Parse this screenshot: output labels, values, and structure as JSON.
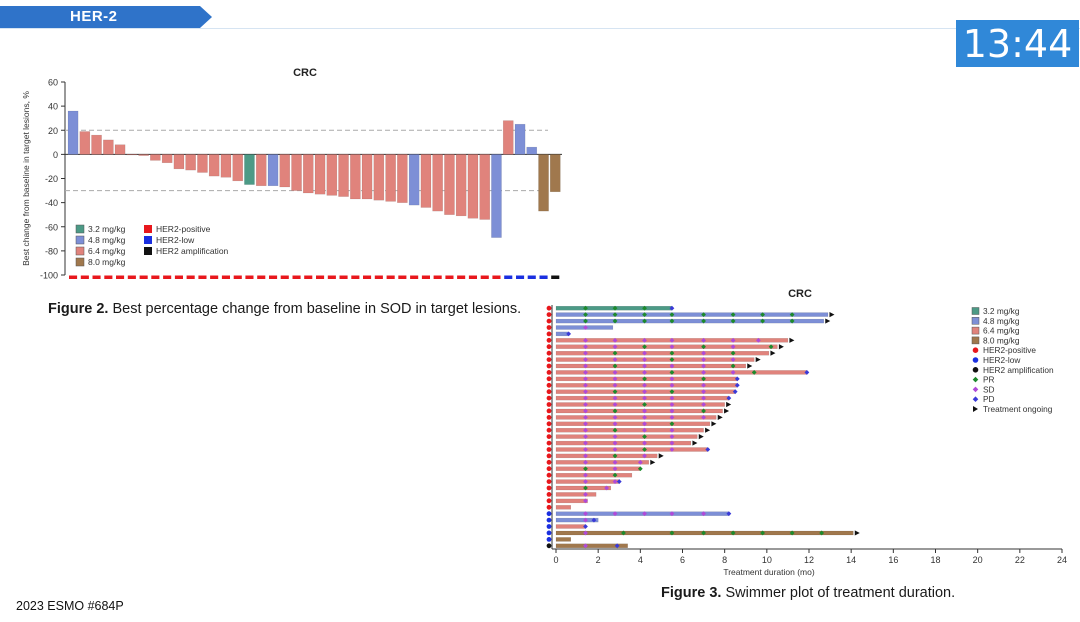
{
  "header": {
    "section_tag": "HER-2",
    "timer": "13:44"
  },
  "footer": {
    "citation": "2023 ESMO #684P"
  },
  "colors": {
    "dose_3_2": "#4c9a86",
    "dose_4_8": "#7d8fd6",
    "dose_6_4": "#e0837c",
    "dose_8_0": "#a0784d",
    "her2_positive": "#e8171c",
    "her2_low": "#1a2fe0",
    "her2_amp": "#111111",
    "pr": "#1d8a2c",
    "sd": "#b04ad8",
    "pd": "#3a3ad8",
    "banner": "#2f73c9",
    "timer_bg": "#3088d8"
  },
  "figure2": {
    "caption_bold": "Figure 2.",
    "caption_text": " Best percentage change from baseline in SOD in target lesions."
  },
  "figure3": {
    "caption_bold": "Figure 3.",
    "caption_text": " Swimmer plot of treatment duration."
  },
  "chart_data": [
    {
      "type": "bar",
      "subtype": "waterfall",
      "title": "CRC",
      "ylabel": "Best change from baseline in target lesions, %",
      "xlabel": "",
      "ylim": [
        -100,
        60
      ],
      "yticks": [
        60,
        40,
        20,
        0,
        -20,
        -40,
        -60,
        -80,
        -100
      ],
      "reference_lines": [
        20,
        -30
      ],
      "legend_dose": [
        {
          "label": "3.2 mg/kg",
          "key": "dose_3_2"
        },
        {
          "label": "4.8 mg/kg",
          "key": "dose_4_8"
        },
        {
          "label": "6.4 mg/kg",
          "key": "dose_6_4"
        },
        {
          "label": "8.0 mg/kg",
          "key": "dose_8_0"
        }
      ],
      "legend_her2": [
        {
          "label": "HER2-positive",
          "key": "her2_positive"
        },
        {
          "label": "HER2-low",
          "key": "her2_low"
        },
        {
          "label": "HER2 amplification",
          "key": "her2_amp"
        }
      ],
      "bars": [
        {
          "value": 36,
          "dose": "dose_4_8",
          "her2": "her2_positive"
        },
        {
          "value": 19,
          "dose": "dose_6_4",
          "her2": "her2_positive"
        },
        {
          "value": 16,
          "dose": "dose_6_4",
          "her2": "her2_positive"
        },
        {
          "value": 12,
          "dose": "dose_6_4",
          "her2": "her2_positive"
        },
        {
          "value": 8,
          "dose": "dose_6_4",
          "her2": "her2_positive"
        },
        {
          "value": 0,
          "dose": "dose_6_4",
          "her2": "her2_positive"
        },
        {
          "value": -1,
          "dose": "dose_6_4",
          "her2": "her2_positive"
        },
        {
          "value": -5,
          "dose": "dose_6_4",
          "her2": "her2_positive"
        },
        {
          "value": -7,
          "dose": "dose_6_4",
          "her2": "her2_positive"
        },
        {
          "value": -12,
          "dose": "dose_6_4",
          "her2": "her2_positive"
        },
        {
          "value": -13,
          "dose": "dose_6_4",
          "her2": "her2_positive"
        },
        {
          "value": -15,
          "dose": "dose_6_4",
          "her2": "her2_positive"
        },
        {
          "value": -18,
          "dose": "dose_6_4",
          "her2": "her2_positive"
        },
        {
          "value": -19,
          "dose": "dose_6_4",
          "her2": "her2_positive"
        },
        {
          "value": -22,
          "dose": "dose_6_4",
          "her2": "her2_positive"
        },
        {
          "value": -25,
          "dose": "dose_3_2",
          "her2": "her2_positive"
        },
        {
          "value": -26,
          "dose": "dose_6_4",
          "her2": "her2_positive"
        },
        {
          "value": -26,
          "dose": "dose_4_8",
          "her2": "her2_positive"
        },
        {
          "value": -27,
          "dose": "dose_6_4",
          "her2": "her2_positive"
        },
        {
          "value": -30,
          "dose": "dose_6_4",
          "her2": "her2_positive"
        },
        {
          "value": -32,
          "dose": "dose_6_4",
          "her2": "her2_positive"
        },
        {
          "value": -33,
          "dose": "dose_6_4",
          "her2": "her2_positive"
        },
        {
          "value": -34,
          "dose": "dose_6_4",
          "her2": "her2_positive"
        },
        {
          "value": -35,
          "dose": "dose_6_4",
          "her2": "her2_positive"
        },
        {
          "value": -37,
          "dose": "dose_6_4",
          "her2": "her2_positive"
        },
        {
          "value": -37,
          "dose": "dose_6_4",
          "her2": "her2_positive"
        },
        {
          "value": -38,
          "dose": "dose_6_4",
          "her2": "her2_positive"
        },
        {
          "value": -39,
          "dose": "dose_6_4",
          "her2": "her2_positive"
        },
        {
          "value": -40,
          "dose": "dose_6_4",
          "her2": "her2_positive"
        },
        {
          "value": -42,
          "dose": "dose_4_8",
          "her2": "her2_positive"
        },
        {
          "value": -44,
          "dose": "dose_6_4",
          "her2": "her2_positive"
        },
        {
          "value": -47,
          "dose": "dose_6_4",
          "her2": "her2_positive"
        },
        {
          "value": -50,
          "dose": "dose_6_4",
          "her2": "her2_positive"
        },
        {
          "value": -51,
          "dose": "dose_6_4",
          "her2": "her2_positive"
        },
        {
          "value": -53,
          "dose": "dose_6_4",
          "her2": "her2_positive"
        },
        {
          "value": -54,
          "dose": "dose_6_4",
          "her2": "her2_positive"
        },
        {
          "value": -69,
          "dose": "dose_4_8",
          "her2": "her2_positive"
        },
        {
          "value": 28,
          "dose": "dose_6_4",
          "her2": "her2_low"
        },
        {
          "value": 25,
          "dose": "dose_4_8",
          "her2": "her2_low"
        },
        {
          "value": 6,
          "dose": "dose_4_8",
          "her2": "her2_low"
        },
        {
          "value": -47,
          "dose": "dose_8_0",
          "her2": "her2_low"
        },
        {
          "value": -31,
          "dose": "dose_8_0",
          "her2": "her2_amp"
        }
      ]
    },
    {
      "type": "swimmer",
      "title": "CRC",
      "xlabel": "Treatment duration (mo)",
      "xlim": [
        0,
        24
      ],
      "xticks": [
        0,
        2,
        4,
        6,
        8,
        10,
        12,
        14,
        16,
        18,
        20,
        22,
        24
      ],
      "legend": [
        {
          "label": "3.2 mg/kg",
          "key": "dose_3_2",
          "shape": "square"
        },
        {
          "label": "4.8 mg/kg",
          "key": "dose_4_8",
          "shape": "square"
        },
        {
          "label": "6.4 mg/kg",
          "key": "dose_6_4",
          "shape": "square"
        },
        {
          "label": "8.0 mg/kg",
          "key": "dose_8_0",
          "shape": "square"
        },
        {
          "label": "HER2-positive",
          "key": "her2_positive",
          "shape": "circle"
        },
        {
          "label": "HER2-low",
          "key": "her2_low",
          "shape": "circle"
        },
        {
          "label": "HER2 amplification",
          "key": "her2_amp",
          "shape": "circle"
        },
        {
          "label": "PR",
          "key": "pr",
          "shape": "diamond"
        },
        {
          "label": "SD",
          "key": "sd",
          "shape": "diamond"
        },
        {
          "label": "PD",
          "key": "pd",
          "shape": "diamond"
        },
        {
          "label": "Treatment ongoing",
          "key": "ongoing",
          "shape": "triangle"
        }
      ],
      "lanes": [
        {
          "dose": "dose_3_2",
          "her2": "her2_positive",
          "end": 5.5,
          "ongoing": false,
          "pr": [
            1.4,
            2.8,
            4.2
          ],
          "sd": [],
          "pd": [
            5.5
          ]
        },
        {
          "dose": "dose_4_8",
          "her2": "her2_positive",
          "end": 12.9,
          "ongoing": true,
          "pr": [
            1.4,
            2.8,
            4.2,
            5.5,
            7.0,
            8.4,
            9.8,
            11.2
          ],
          "sd": [],
          "pd": []
        },
        {
          "dose": "dose_4_8",
          "her2": "her2_positive",
          "end": 12.7,
          "ongoing": true,
          "pr": [
            1.4,
            2.8,
            4.2,
            5.5,
            7.0,
            8.4,
            9.8,
            11.2
          ],
          "sd": [],
          "pd": []
        },
        {
          "dose": "dose_4_8",
          "her2": "her2_positive",
          "end": 2.7,
          "ongoing": false,
          "pr": [],
          "sd": [
            1.4
          ],
          "pd": []
        },
        {
          "dose": "dose_4_8",
          "her2": "her2_positive",
          "end": 0.6,
          "ongoing": false,
          "pr": [],
          "sd": [],
          "pd": [
            0.6
          ]
        },
        {
          "dose": "dose_6_4",
          "her2": "her2_positive",
          "end": 11.0,
          "ongoing": true,
          "pr": [],
          "sd": [
            1.4,
            2.8,
            4.2,
            5.5,
            7.0,
            8.4,
            9.6
          ],
          "pd": []
        },
        {
          "dose": "dose_6_4",
          "her2": "her2_positive",
          "end": 10.5,
          "ongoing": true,
          "pr": [
            4.2,
            7.0,
            10.2
          ],
          "sd": [
            1.4,
            2.8,
            5.5,
            8.4
          ],
          "pd": []
        },
        {
          "dose": "dose_6_4",
          "her2": "her2_positive",
          "end": 10.1,
          "ongoing": true,
          "pr": [
            2.8,
            5.5,
            8.4
          ],
          "sd": [
            1.4,
            4.2,
            7.0
          ],
          "pd": []
        },
        {
          "dose": "dose_6_4",
          "her2": "her2_positive",
          "end": 9.4,
          "ongoing": true,
          "pr": [
            5.5
          ],
          "sd": [
            1.4,
            2.8,
            4.2,
            7.0,
            8.4
          ],
          "pd": []
        },
        {
          "dose": "dose_6_4",
          "her2": "her2_positive",
          "end": 9.0,
          "ongoing": true,
          "pr": [
            2.8,
            8.4
          ],
          "sd": [
            1.4,
            4.2,
            5.5,
            7.0
          ],
          "pd": []
        },
        {
          "dose": "dose_6_4",
          "her2": "her2_positive",
          "end": 11.9,
          "ongoing": false,
          "pr": [
            5.5,
            9.4
          ],
          "sd": [
            1.4,
            2.8,
            4.2,
            7.0,
            8.4
          ],
          "pd": [
            11.9
          ]
        },
        {
          "dose": "dose_6_4",
          "her2": "her2_positive",
          "end": 8.6,
          "ongoing": false,
          "pr": [
            4.2,
            7.0
          ],
          "sd": [
            1.4,
            2.8,
            5.5
          ],
          "pd": [
            8.6
          ]
        },
        {
          "dose": "dose_6_4",
          "her2": "her2_positive",
          "end": 8.6,
          "ongoing": false,
          "pr": [],
          "sd": [
            1.4,
            2.8,
            4.2,
            5.5,
            7.0
          ],
          "pd": [
            8.6
          ]
        },
        {
          "dose": "dose_6_4",
          "her2": "her2_positive",
          "end": 8.5,
          "ongoing": false,
          "pr": [
            2.8,
            5.5
          ],
          "sd": [
            1.4,
            4.2,
            7.0
          ],
          "pd": [
            8.5
          ]
        },
        {
          "dose": "dose_6_4",
          "her2": "her2_positive",
          "end": 8.2,
          "ongoing": false,
          "pr": [],
          "sd": [
            1.4,
            2.8,
            4.2,
            5.5,
            7.0
          ],
          "pd": [
            8.2
          ]
        },
        {
          "dose": "dose_6_4",
          "her2": "her2_positive",
          "end": 8.0,
          "ongoing": true,
          "pr": [
            4.2
          ],
          "sd": [
            1.4,
            2.8,
            5.5,
            7.0
          ],
          "pd": []
        },
        {
          "dose": "dose_6_4",
          "her2": "her2_positive",
          "end": 7.9,
          "ongoing": true,
          "pr": [
            2.8,
            7.0
          ],
          "sd": [
            1.4,
            4.2,
            5.5
          ],
          "pd": []
        },
        {
          "dose": "dose_6_4",
          "her2": "her2_positive",
          "end": 7.6,
          "ongoing": true,
          "pr": [],
          "sd": [
            1.4,
            2.8,
            4.2,
            5.5,
            7.0
          ],
          "pd": []
        },
        {
          "dose": "dose_6_4",
          "her2": "her2_positive",
          "end": 7.3,
          "ongoing": true,
          "pr": [
            5.5
          ],
          "sd": [
            1.4,
            2.8,
            4.2
          ],
          "pd": []
        },
        {
          "dose": "dose_6_4",
          "her2": "her2_positive",
          "end": 7.0,
          "ongoing": true,
          "pr": [
            2.8
          ],
          "sd": [
            1.4,
            4.2,
            5.5
          ],
          "pd": []
        },
        {
          "dose": "dose_6_4",
          "her2": "her2_positive",
          "end": 6.7,
          "ongoing": true,
          "pr": [
            4.2
          ],
          "sd": [
            1.4,
            2.8,
            5.5
          ],
          "pd": []
        },
        {
          "dose": "dose_6_4",
          "her2": "her2_positive",
          "end": 6.4,
          "ongoing": true,
          "pr": [],
          "sd": [
            1.4,
            2.8,
            4.2,
            5.5
          ],
          "pd": []
        },
        {
          "dose": "dose_6_4",
          "her2": "her2_positive",
          "end": 7.2,
          "ongoing": false,
          "pr": [
            4.2
          ],
          "sd": [
            1.4,
            2.8,
            5.5
          ],
          "pd": [
            7.2
          ]
        },
        {
          "dose": "dose_6_4",
          "her2": "her2_positive",
          "end": 4.8,
          "ongoing": true,
          "pr": [
            2.8
          ],
          "sd": [
            1.4,
            4.2
          ],
          "pd": []
        },
        {
          "dose": "dose_6_4",
          "her2": "her2_positive",
          "end": 4.4,
          "ongoing": true,
          "pr": [],
          "sd": [
            1.4,
            2.8,
            4.0
          ],
          "pd": []
        },
        {
          "dose": "dose_6_4",
          "her2": "her2_positive",
          "end": 4.0,
          "ongoing": false,
          "pr": [
            1.4,
            4.0
          ],
          "sd": [
            2.8
          ],
          "pd": []
        },
        {
          "dose": "dose_6_4",
          "her2": "her2_positive",
          "end": 3.6,
          "ongoing": false,
          "pr": [
            2.8
          ],
          "sd": [
            1.4
          ],
          "pd": []
        },
        {
          "dose": "dose_6_4",
          "her2": "her2_positive",
          "end": 3.0,
          "ongoing": false,
          "pr": [],
          "sd": [
            1.4,
            2.8
          ],
          "pd": [
            3.0
          ]
        },
        {
          "dose": "dose_6_4",
          "her2": "her2_positive",
          "end": 2.6,
          "ongoing": false,
          "pr": [
            1.4
          ],
          "sd": [
            2.4
          ],
          "pd": []
        },
        {
          "dose": "dose_6_4",
          "her2": "her2_positive",
          "end": 1.9,
          "ongoing": false,
          "pr": [],
          "sd": [
            1.4
          ],
          "pd": []
        },
        {
          "dose": "dose_6_4",
          "her2": "her2_positive",
          "end": 1.5,
          "ongoing": false,
          "pr": [],
          "sd": [
            1.4
          ],
          "pd": []
        },
        {
          "dose": "dose_6_4",
          "her2": "her2_positive",
          "end": 0.7,
          "ongoing": false,
          "pr": [],
          "sd": [],
          "pd": []
        },
        {
          "dose": "dose_4_8",
          "her2": "her2_low",
          "end": 8.2,
          "ongoing": false,
          "pr": [],
          "sd": [
            1.4,
            2.8,
            4.2,
            5.5,
            7.0
          ],
          "pd": [
            8.2
          ]
        },
        {
          "dose": "dose_4_8",
          "her2": "her2_low",
          "end": 2.0,
          "ongoing": false,
          "pr": [],
          "sd": [
            1.4
          ],
          "pd": [
            1.8
          ]
        },
        {
          "dose": "dose_6_4",
          "her2": "her2_low",
          "end": 1.4,
          "ongoing": false,
          "pr": [],
          "sd": [],
          "pd": [
            1.4
          ]
        },
        {
          "dose": "dose_8_0",
          "her2": "her2_low",
          "end": 14.1,
          "ongoing": true,
          "pr": [
            3.2,
            5.5,
            7.0,
            8.4,
            9.8,
            11.2,
            12.6
          ],
          "sd": [
            1.4
          ],
          "pd": []
        },
        {
          "dose": "dose_8_0",
          "her2": "her2_low",
          "end": 0.7,
          "ongoing": false,
          "pr": [],
          "sd": [],
          "pd": []
        },
        {
          "dose": "dose_8_0",
          "her2": "her2_amp",
          "end": 3.4,
          "ongoing": false,
          "pr": [],
          "sd": [
            1.4
          ],
          "pd": [
            2.9
          ]
        }
      ]
    }
  ]
}
